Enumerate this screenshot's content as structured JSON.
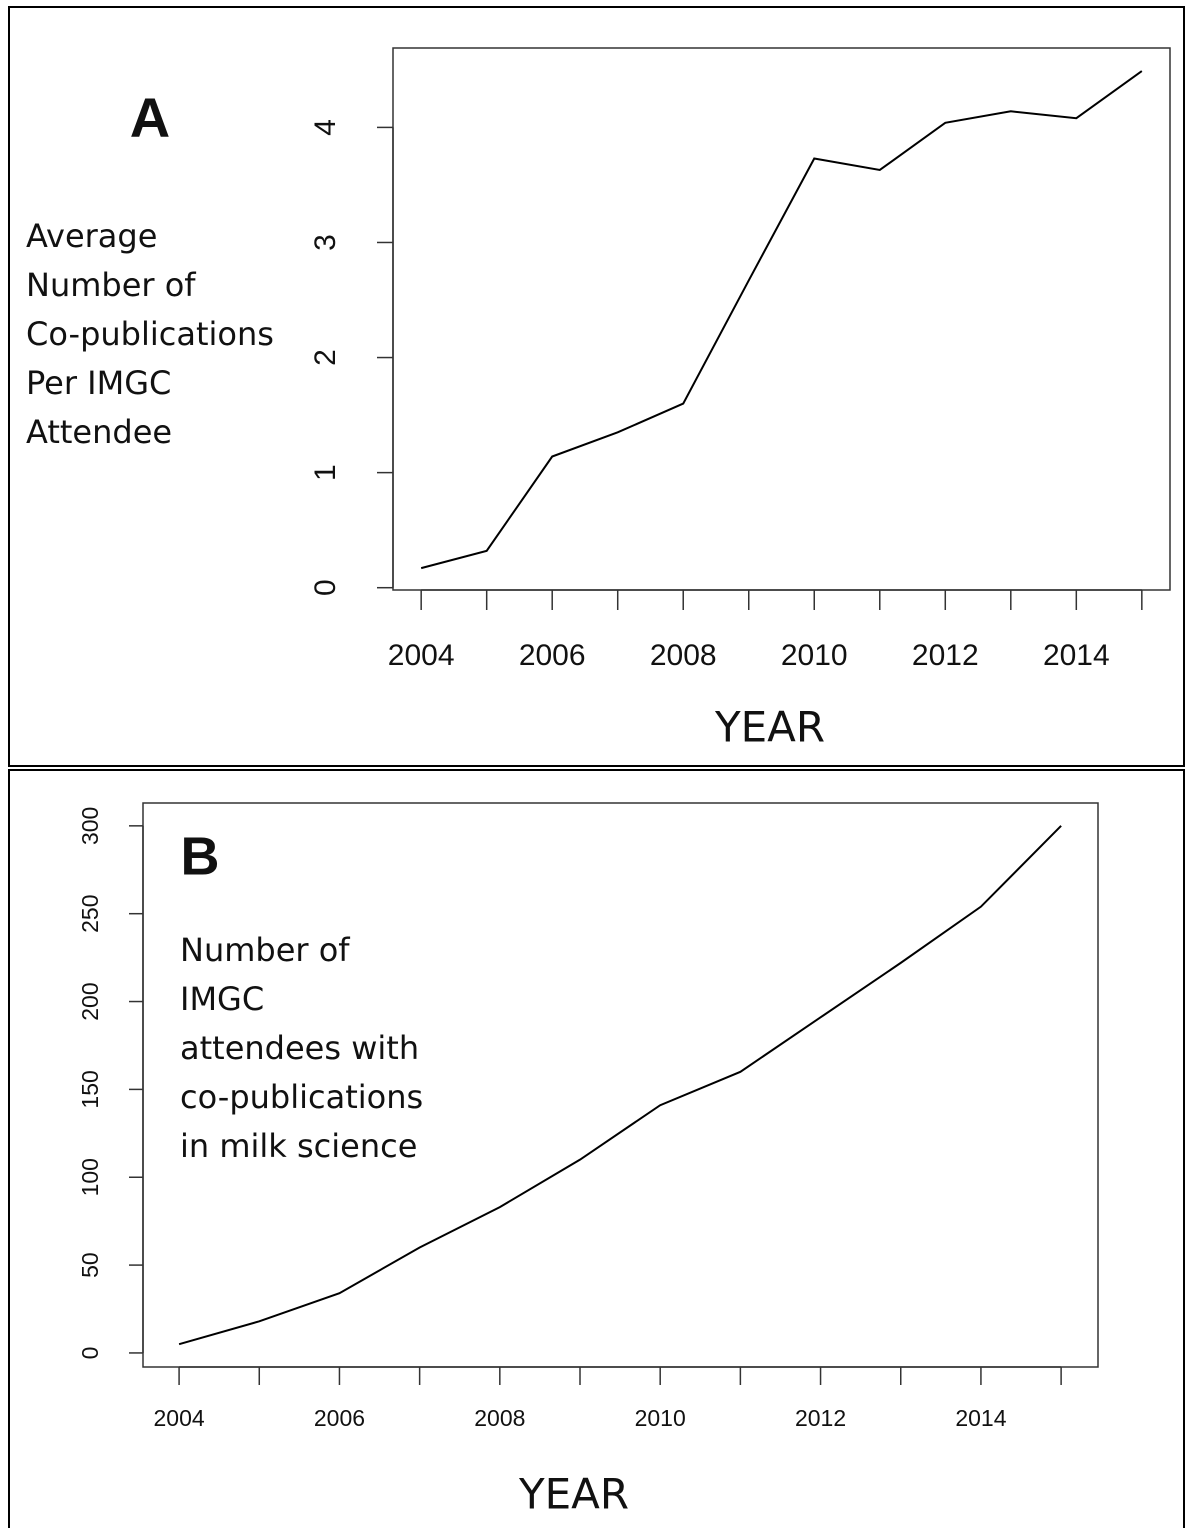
{
  "chart_data": [
    {
      "type": "line",
      "panel_label": "A",
      "ylabel": [
        "Average",
        "Number of",
        "Co-publications",
        "Per IMGC",
        "Attendee"
      ],
      "xlabel": "YEAR",
      "x": [
        2004,
        2005,
        2006,
        2007,
        2008,
        2009,
        2010,
        2011,
        2012,
        2013,
        2014,
        2015
      ],
      "values": [
        0.17,
        0.32,
        1.14,
        1.35,
        1.6,
        2.67,
        3.73,
        3.63,
        4.04,
        4.14,
        4.08,
        4.49
      ],
      "color": "#000000",
      "xlim": [
        2003.57,
        2015.43
      ],
      "ylim": [
        -0.02,
        4.69
      ],
      "xticks": [
        2004,
        {
          "value": 2005,
          "label": null
        },
        2006,
        {
          "value": 2007,
          "label": null
        },
        2008,
        {
          "value": 2009,
          "label": null
        },
        2010,
        {
          "value": 2011,
          "label": null
        },
        2012,
        {
          "value": 2013,
          "label": null
        },
        2014,
        {
          "value": 2015,
          "label": null
        }
      ],
      "yticks": [
        0,
        1,
        2,
        3,
        4
      ]
    },
    {
      "type": "line",
      "panel_label": "B",
      "ylabel": [
        "Number of",
        "IMGC",
        "attendees with",
        "co-publications",
        "in milk science"
      ],
      "xlabel": "YEAR",
      "x": [
        2004,
        2005,
        2006,
        2007,
        2008,
        2009,
        2010,
        2011,
        2012,
        2013,
        2014,
        2015
      ],
      "values": [
        5,
        18,
        34,
        60,
        83,
        110,
        141,
        160,
        191,
        222,
        254,
        300
      ],
      "color": "#000000",
      "xlim": [
        2003.55,
        2015.46
      ],
      "ylim": [
        -8,
        313
      ],
      "xticks": [
        2004,
        {
          "value": 2005,
          "label": null
        },
        2006,
        {
          "value": 2007,
          "label": null
        },
        2008,
        {
          "value": 2009,
          "label": null
        },
        2010,
        {
          "value": 2011,
          "label": null
        },
        2012,
        {
          "value": 2013,
          "label": null
        },
        2014,
        {
          "value": 2015,
          "label": null
        }
      ],
      "yticks": [
        0,
        50,
        100,
        150,
        200,
        250,
        300
      ]
    }
  ]
}
